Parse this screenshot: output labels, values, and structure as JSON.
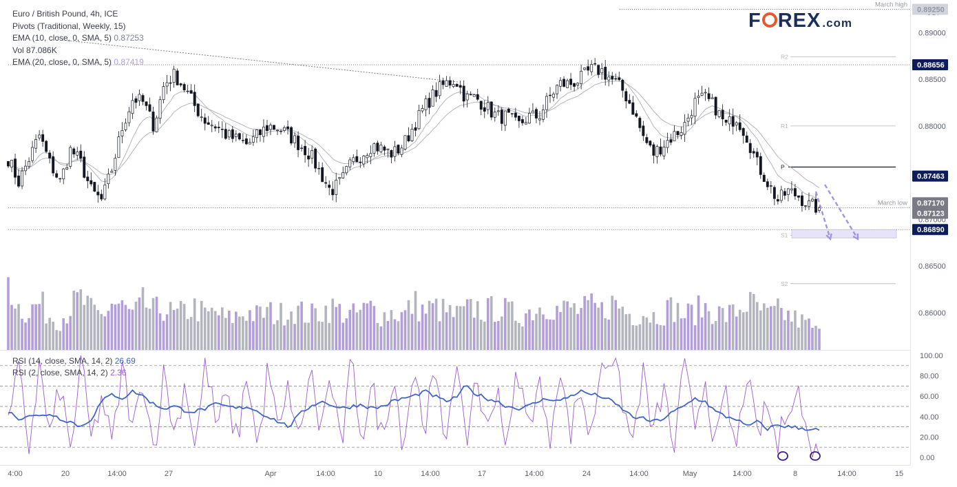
{
  "legend": {
    "symbol": "Euro / British Pound, 4h, ICE",
    "pivots": "Pivots (Traditional, Weekly, 15)",
    "ema10": "EMA (10, close, 0, SMA, 5)",
    "ema10_value": "0.87253",
    "vol": "Vol",
    "vol_value": "87.086K",
    "ema20": "EMA (20, close, 0, SMA, 5)",
    "ema20_value": "0.87419"
  },
  "logo": {
    "brand_prefix": "F",
    "brand_suffix": "REX",
    "domain": ".com"
  },
  "rsi_legend": {
    "rsi14": "RSI (14, close, SMA, 14, 2)",
    "rsi14_value": "26.69",
    "rsi2": "RSI (2, close, SMA, 14, 2)",
    "rsi2_value": "2.36"
  },
  "colors": {
    "candle": "#131722",
    "ema": "#b2b5be",
    "volume_bull": "#b39ddb",
    "volume_bear": "#b2b5be",
    "rsi14_line": "#3f64c9",
    "rsi2_line": "#9b59d0",
    "price_label_bg": "#0e1c5e",
    "arrow": "#a393e6",
    "target_zone": "#e6e3fa"
  },
  "chart_data": {
    "type": "candlestick",
    "instrument": "EUR/GBP",
    "timeframe": "4h",
    "currency_axis_label": "GBP",
    "price_ylim": [
      0.856,
      0.8935
    ],
    "price_ticks": [
      "0.89000",
      "0.88500",
      "0.88000",
      "0.87000",
      "0.86500",
      "0.86000"
    ],
    "x_ticks": [
      "4:00",
      "20",
      "14:00",
      "27",
      "Apr",
      "14:00",
      "10",
      "14:00",
      "17",
      "14:00",
      "24",
      "14:00",
      "May",
      "14:00",
      "8",
      "14:00",
      "15"
    ],
    "horizontal_levels": [
      {
        "label": "March high",
        "price": 0.8925,
        "tag": "0.89250"
      },
      {
        "label": "March low",
        "price": 0.87123,
        "tag": ""
      },
      {
        "label": "",
        "price": 0.88656,
        "tag": "0.88656"
      },
      {
        "label": "",
        "price": 0.8689,
        "tag": "0.86890"
      }
    ],
    "pivot_levels": [
      {
        "label": "R2",
        "price": 0.8874
      },
      {
        "label": "R1",
        "price": 0.88
      },
      {
        "label": "P",
        "price": 0.8756
      },
      {
        "label": "S1",
        "price": 0.8683
      },
      {
        "label": "S2",
        "price": 0.8631
      }
    ],
    "price_tags": [
      "0.87463",
      "0.87170",
      "0.87123"
    ],
    "current_price": 0.87123,
    "ema10_last": 0.87253,
    "ema20_last": 0.87419,
    "close_path": [
      0.8765,
      0.874,
      0.8765,
      0.879,
      0.876,
      0.874,
      0.8775,
      0.876,
      0.873,
      0.872,
      0.8755,
      0.88,
      0.883,
      0.8825,
      0.88,
      0.8845,
      0.8855,
      0.884,
      0.882,
      0.8805,
      0.88,
      0.879,
      0.8785,
      0.878,
      0.879,
      0.88,
      0.8798,
      0.879,
      0.878,
      0.877,
      0.875,
      0.873,
      0.874,
      0.876,
      0.877,
      0.878,
      0.8775,
      0.877,
      0.878,
      0.88,
      0.882,
      0.8835,
      0.8845,
      0.885,
      0.883,
      0.883,
      0.882,
      0.881,
      0.881,
      0.88,
      0.881,
      0.881,
      0.883,
      0.8845,
      0.8845,
      0.885,
      0.886,
      0.886,
      0.885,
      0.884,
      0.882,
      0.879,
      0.877,
      0.878,
      0.879,
      0.88,
      0.8825,
      0.883,
      0.882,
      0.88,
      0.881,
      0.879,
      0.876,
      0.874,
      0.872,
      0.873,
      0.8725,
      0.8715,
      0.8712
    ],
    "volume_ylim": [
      0,
      100
    ],
    "volume_path": [
      85,
      50,
      45,
      55,
      40,
      35,
      50,
      60,
      45,
      40,
      55,
      50,
      40,
      55,
      45,
      50,
      40,
      45,
      50,
      40,
      45,
      35,
      40,
      45,
      40,
      45,
      40,
      50,
      45,
      40,
      45,
      50,
      45,
      40,
      45,
      50,
      40,
      45,
      40,
      55,
      45,
      50,
      45,
      40,
      45,
      50,
      45,
      50,
      45,
      40,
      45,
      50,
      55,
      45,
      50,
      45,
      50,
      45,
      55,
      50,
      40,
      45,
      40,
      45,
      50,
      40,
      45,
      50,
      45,
      40,
      45,
      55,
      50,
      40,
      45,
      40,
      35,
      30,
      20
    ],
    "rsi_ylim": [
      0,
      100
    ],
    "rsi_ticks": [
      "100.00",
      "80.00",
      "60.00",
      "40.00",
      "20.00",
      "0.00"
    ],
    "rsi_levels": [
      90,
      70,
      50,
      30,
      10
    ],
    "rsi14_path": [
      45,
      38,
      42,
      40,
      43,
      38,
      35,
      30,
      38,
      55,
      62,
      58,
      65,
      60,
      52,
      48,
      50,
      46,
      45,
      48,
      52,
      50,
      48,
      50,
      45,
      40,
      35,
      30,
      42,
      50,
      55,
      52,
      48,
      50,
      52,
      48,
      50,
      55,
      58,
      60,
      65,
      60,
      55,
      58,
      70,
      62,
      58,
      55,
      50,
      48,
      50,
      55,
      58,
      55,
      60,
      65,
      62,
      60,
      55,
      48,
      40,
      38,
      35,
      38,
      45,
      50,
      58,
      55,
      45,
      40,
      38,
      30,
      35,
      28,
      32,
      30,
      29,
      28,
      27
    ],
    "rsi2_path": [
      30,
      85,
      10,
      90,
      20,
      70,
      5,
      95,
      15,
      60,
      10,
      90,
      25,
      80,
      5,
      85,
      20,
      75,
      10,
      95,
      30,
      60,
      15,
      85,
      5,
      90,
      20,
      70,
      10,
      90,
      25,
      80,
      5,
      95,
      20,
      70,
      15,
      85,
      10,
      90,
      30,
      80,
      15,
      95,
      10,
      85,
      20,
      75,
      5,
      90,
      25,
      80,
      10,
      95,
      20,
      70,
      15,
      95,
      100,
      60,
      10,
      85,
      20,
      70,
      5,
      90,
      30,
      80,
      10,
      60,
      5,
      85,
      20,
      50,
      10,
      55,
      65,
      10,
      2
    ],
    "annotations": {
      "rsi2_oversold_circles": 2,
      "projected_arrows": 2
    }
  }
}
